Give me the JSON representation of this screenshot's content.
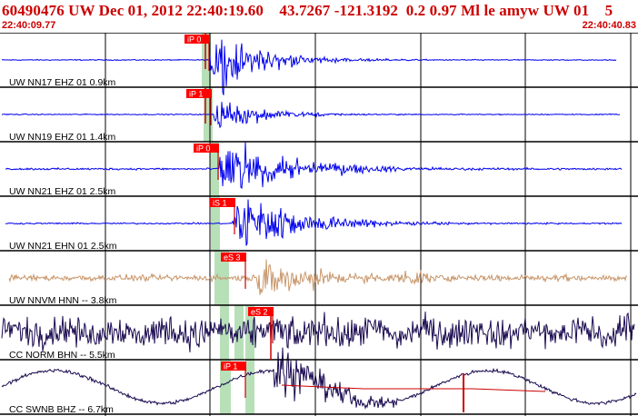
{
  "header": {
    "title": "60490476 UW Dec 01, 2012 22:40:19.60    43.7267 -121.3192  0.2 0.97 Ml le amyw UW 01    5",
    "time_start": "22:40:09.77",
    "time_end": "22:40:40.83"
  },
  "colors": {
    "title": "#cc0000",
    "pick_box": "#ff0000",
    "pick_text": "#ffffff",
    "window_band": "#b8e0b8",
    "blue_trace": "#0000ee",
    "tan_trace": "#c8966a",
    "dark_trace": "#1a0a50",
    "red_line": "#cc0000"
  },
  "traces": [
    {
      "label": "UW NN17 EHZ 01 0.9km",
      "pick": "iP 0",
      "color": "blue_trace"
    },
    {
      "label": "UW NN19 EHZ 01 1.4km",
      "pick": "iP 1",
      "color": "blue_trace"
    },
    {
      "label": "UW NN21 EHZ 01 2.5km",
      "pick": "iP 0",
      "color": "blue_trace"
    },
    {
      "label": "UW NN21 EHN 01 2.5km",
      "pick": "iS 1",
      "color": "blue_trace"
    },
    {
      "label": "UW NNVM HNN -- 3.8km",
      "pick": "eS 3",
      "color": "tan_trace"
    },
    {
      "label": "CC NORM BHN -- 5.5km",
      "pick": "eS 2",
      "color": "dark_trace"
    },
    {
      "label": "CC SWNB BHZ -- 6.7km",
      "pick": "iP 1",
      "color": "dark_trace"
    }
  ]
}
